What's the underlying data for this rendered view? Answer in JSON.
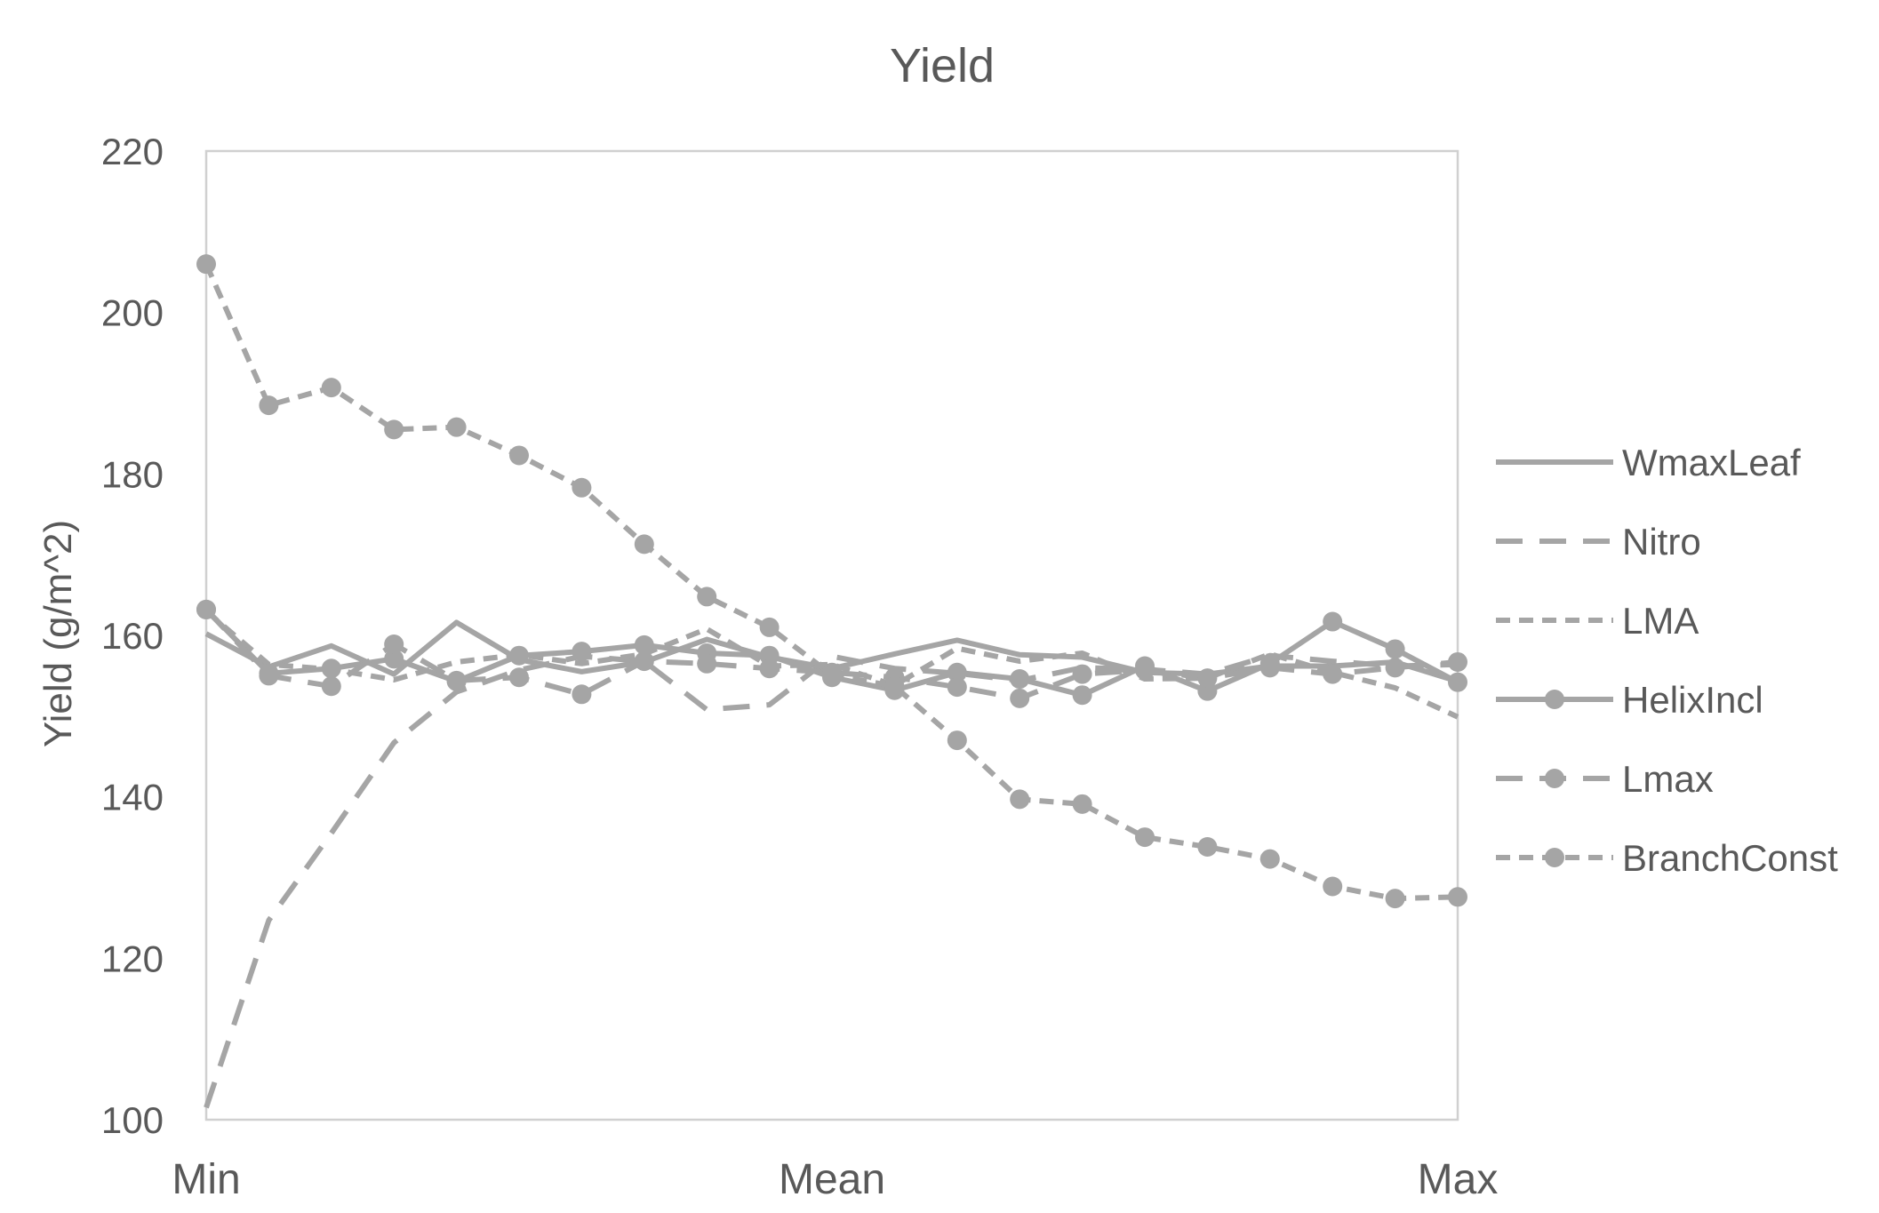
{
  "chart_data": {
    "type": "line",
    "title": "Yield",
    "xlabel": "",
    "ylabel": "Yield (g/m^2)",
    "ylim": [
      100,
      220
    ],
    "yticks": [
      100,
      120,
      140,
      160,
      180,
      200,
      220
    ],
    "xlim": [
      0,
      20
    ],
    "x": [
      0,
      1,
      2,
      3,
      4,
      5,
      6,
      7,
      8,
      9,
      10,
      11,
      12,
      13,
      14,
      15,
      16,
      17,
      18,
      19,
      20
    ],
    "x_tick_labels": [
      {
        "x": 0,
        "label": "Min"
      },
      {
        "x": 10,
        "label": "Mean"
      },
      {
        "x": 20,
        "label": "Max"
      }
    ],
    "legend_position": "right",
    "grid": false,
    "line_color": "#A5A5A5",
    "series": [
      {
        "name": "WmaxLeaf",
        "style": "solid",
        "marker": false,
        "values": [
          160.2,
          156.1,
          158.7,
          155.2,
          161.6,
          157.0,
          155.5,
          156.7,
          159.5,
          157.3,
          155.9,
          157.7,
          159.4,
          157.6,
          157.3,
          155.4,
          155.2,
          156.2,
          156.2,
          156.7,
          154.3
        ]
      },
      {
        "name": "Nitro",
        "style": "dash",
        "marker": false,
        "values": [
          101.5,
          124.7,
          135.5,
          146.7,
          153.0,
          155.7,
          157.4,
          156.8,
          150.8,
          151.4,
          157.4,
          155.9,
          155.3,
          154.4,
          156.0,
          155.8,
          155.2,
          157.5,
          156.8,
          156.2,
          156.4
        ]
      },
      {
        "name": "LMA",
        "style": "shortdash",
        "marker": false,
        "values": [
          163.0,
          156.4,
          155.8,
          154.5,
          156.7,
          157.6,
          156.5,
          157.7,
          160.8,
          156.2,
          156.4,
          153.8,
          158.4,
          156.8,
          157.8,
          154.6,
          154.7,
          157.7,
          155.4,
          153.5,
          149.9
        ]
      },
      {
        "name": "HelixIncl",
        "style": "solid",
        "marker": true,
        "values": [
          163.2,
          155.3,
          155.9,
          157.1,
          154.3,
          157.5,
          158.0,
          158.8,
          157.8,
          157.5,
          154.8,
          153.2,
          155.4,
          154.6,
          152.6,
          156.2,
          153.1,
          156.5,
          161.7,
          158.3,
          154.2
        ]
      },
      {
        "name": "Lmax",
        "style": "dash",
        "marker": true,
        "values": [
          163.2,
          155.0,
          153.7,
          158.9,
          154.4,
          154.8,
          152.7,
          156.8,
          156.5,
          155.9,
          155.4,
          154.8,
          153.6,
          152.2,
          155.2,
          155.7,
          154.7,
          156.0,
          155.2,
          156.0,
          156.7
        ]
      },
      {
        "name": "BranchConst",
        "style": "shortdash",
        "marker": true,
        "values": [
          206.0,
          188.5,
          190.7,
          185.5,
          185.8,
          182.3,
          178.3,
          171.3,
          164.8,
          161.0,
          155.1,
          153.7,
          147.0,
          139.7,
          139.1,
          135.0,
          133.8,
          132.3,
          128.9,
          127.4,
          127.6
        ]
      }
    ]
  }
}
